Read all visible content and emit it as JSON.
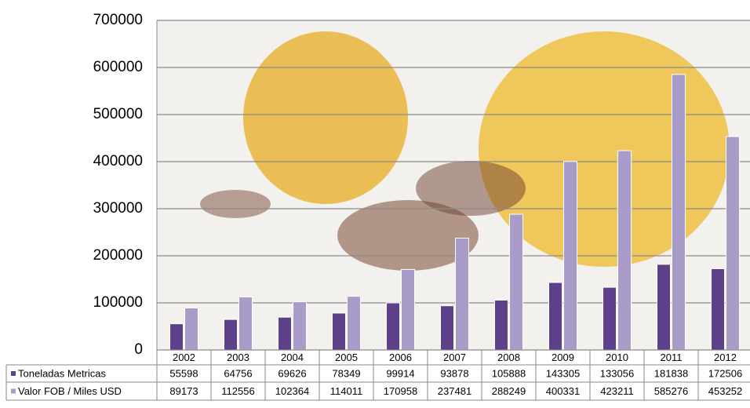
{
  "chart_data": {
    "type": "bar",
    "categories": [
      "2002",
      "2003",
      "2004",
      "2005",
      "2006",
      "2007",
      "2008",
      "2009",
      "2010",
      "2011",
      "2012"
    ],
    "series": [
      {
        "name": "Toneladas Metricas",
        "color": "#5e3f8a",
        "values": [
          55598,
          64756,
          69626,
          78349,
          99914,
          93878,
          105888,
          143305,
          133056,
          181838,
          172506
        ]
      },
      {
        "name": "Valor FOB / Miles USD",
        "color": "#a99cc8",
        "values": [
          89173,
          112556,
          102364,
          114011,
          170958,
          237481,
          288249,
          400331,
          423211,
          585276,
          453252
        ]
      }
    ],
    "ylim": [
      0,
      700000
    ],
    "yticks": [
      0,
      100000,
      200000,
      300000,
      400000,
      500000,
      600000,
      700000
    ],
    "grid": true
  }
}
